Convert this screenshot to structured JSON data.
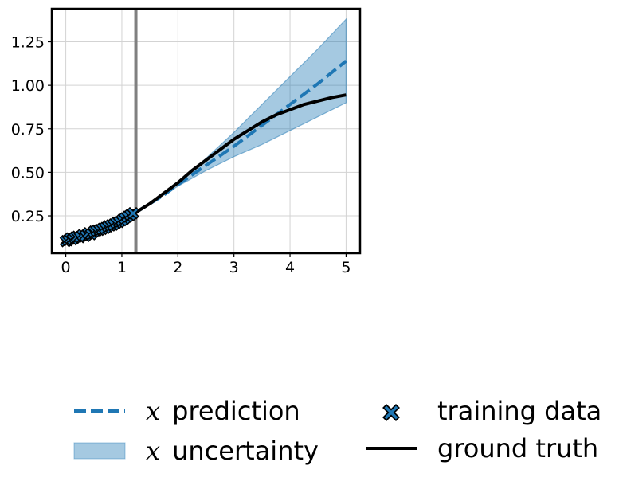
{
  "chart_data": {
    "type": "line",
    "title": "",
    "xlabel": "",
    "ylabel": "",
    "xlim": [
      -0.25,
      5.25
    ],
    "ylim": [
      0.035,
      1.44
    ],
    "grid": true,
    "x_ticks": [
      0,
      1,
      2,
      3,
      4,
      5
    ],
    "x_tick_labels": [
      "0",
      "1",
      "2",
      "3",
      "4",
      "5"
    ],
    "y_ticks": [
      0.25,
      0.5,
      0.75,
      1.0,
      1.25
    ],
    "y_tick_labels": [
      "0.25",
      "0.50",
      "0.75",
      "1.00",
      "1.25"
    ],
    "vertical_line": {
      "x": 1.25,
      "color": "#808080"
    },
    "legend_placement": "below",
    "series": [
      {
        "name": "ground truth",
        "kind": "line",
        "color": "#000000",
        "x": [
          1.25,
          1.5,
          1.75,
          2.0,
          2.25,
          2.5,
          2.75,
          3.0,
          3.25,
          3.5,
          3.75,
          4.0,
          4.25,
          4.5,
          4.75,
          5.0
        ],
        "values": [
          0.27,
          0.32,
          0.38,
          0.44,
          0.51,
          0.57,
          0.63,
          0.69,
          0.74,
          0.79,
          0.83,
          0.86,
          0.89,
          0.91,
          0.93,
          0.945
        ]
      },
      {
        "name": "prediction",
        "legend_symbol": "x",
        "kind": "dashed-line",
        "color": "#1f77b4",
        "x": [
          1.25,
          1.5,
          1.75,
          2.0,
          2.5,
          3.0,
          3.5,
          4.0,
          4.5,
          5.0
        ],
        "values": [
          0.27,
          0.32,
          0.37,
          0.43,
          0.54,
          0.65,
          0.77,
          0.89,
          1.01,
          1.14
        ]
      },
      {
        "name": "uncertainty",
        "legend_symbol": "x",
        "kind": "band",
        "color": "#1f77b4",
        "x": [
          1.25,
          1.5,
          2.0,
          2.5,
          3.0,
          3.5,
          4.0,
          4.5,
          5.0
        ],
        "lower": [
          0.27,
          0.32,
          0.42,
          0.51,
          0.59,
          0.66,
          0.74,
          0.82,
          0.9
        ],
        "upper": [
          0.27,
          0.32,
          0.44,
          0.58,
          0.73,
          0.89,
          1.05,
          1.21,
          1.38
        ]
      },
      {
        "name": "training data",
        "kind": "scatter",
        "marker": "x",
        "color": "#1f77b4",
        "x": [
          0.0,
          0.04,
          0.08,
          0.12,
          0.16,
          0.2,
          0.25,
          0.3,
          0.35,
          0.4,
          0.45,
          0.5,
          0.55,
          0.6,
          0.65,
          0.7,
          0.75,
          0.8,
          0.85,
          0.9,
          0.95,
          1.0,
          1.05,
          1.1,
          1.15,
          1.2
        ],
        "values": [
          0.105,
          0.11,
          0.12,
          0.115,
          0.125,
          0.13,
          0.128,
          0.14,
          0.135,
          0.15,
          0.145,
          0.16,
          0.165,
          0.17,
          0.175,
          0.18,
          0.19,
          0.195,
          0.2,
          0.21,
          0.215,
          0.225,
          0.235,
          0.245,
          0.255,
          0.265
        ]
      }
    ]
  }
}
